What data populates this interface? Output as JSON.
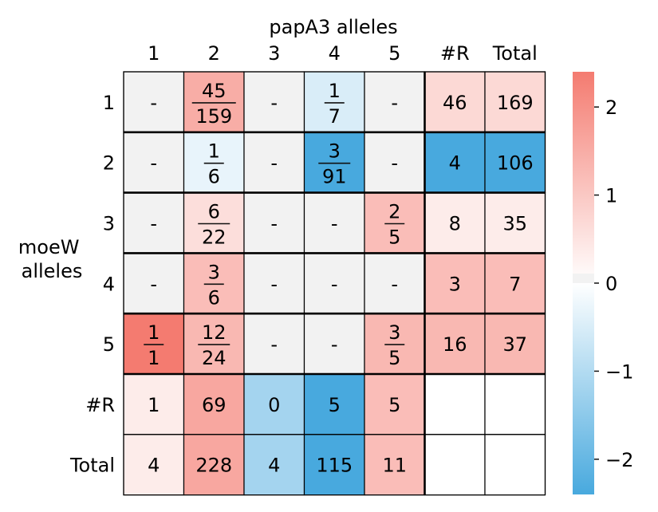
{
  "chart_data": {
    "type": "heatmap",
    "title": "papA3 alleles",
    "ylabel_lines": [
      "moeW",
      "alleles"
    ],
    "col_labels": [
      "1",
      "2",
      "3",
      "4",
      "5",
      "#R",
      "Total"
    ],
    "row_labels": [
      "1",
      "2",
      "3",
      "4",
      "5",
      "#R",
      "Total"
    ],
    "cells": [
      [
        {
          "v": 0,
          "t": "-"
        },
        {
          "v": 1.5,
          "num": "45",
          "den": "159"
        },
        {
          "v": 0,
          "t": "-"
        },
        {
          "v": -0.5,
          "num": "1",
          "den": "7"
        },
        {
          "v": 0,
          "t": "-"
        },
        {
          "v": 0.7,
          "t": "46"
        },
        {
          "v": 0.7,
          "t": "169"
        }
      ],
      [
        {
          "v": 0,
          "t": "-"
        },
        {
          "v": -0.3,
          "num": "1",
          "den": "6"
        },
        {
          "v": 0,
          "t": "-"
        },
        {
          "v": -2.4,
          "num": "3",
          "den": "91"
        },
        {
          "v": 0,
          "t": "-"
        },
        {
          "v": -2.4,
          "t": "4"
        },
        {
          "v": -2.4,
          "t": "106"
        }
      ],
      [
        {
          "v": 0,
          "t": "-"
        },
        {
          "v": 0.6,
          "num": "6",
          "den": "22"
        },
        {
          "v": 0,
          "t": "-"
        },
        {
          "v": 0,
          "t": "-"
        },
        {
          "v": 1.2,
          "num": "2",
          "den": "5"
        },
        {
          "v": 0.35,
          "t": "8"
        },
        {
          "v": 0.35,
          "t": "35"
        }
      ],
      [
        {
          "v": 0,
          "t": "-"
        },
        {
          "v": 1.2,
          "num": "3",
          "den": "6"
        },
        {
          "v": 0,
          "t": "-"
        },
        {
          "v": 0,
          "t": "-"
        },
        {
          "v": 0,
          "t": "-"
        },
        {
          "v": 1.2,
          "t": "3"
        },
        {
          "v": 1.2,
          "t": "7"
        }
      ],
      [
        {
          "v": 2.4,
          "num": "1",
          "den": "1"
        },
        {
          "v": 1.3,
          "num": "12",
          "den": "24"
        },
        {
          "v": 0,
          "t": "-"
        },
        {
          "v": 0,
          "t": "-"
        },
        {
          "v": 1.3,
          "num": "3",
          "den": "5"
        },
        {
          "v": 1.3,
          "t": "16"
        },
        {
          "v": 1.3,
          "t": "37"
        }
      ],
      [
        {
          "v": 0.35,
          "t": "1"
        },
        {
          "v": 1.6,
          "t": "69"
        },
        {
          "v": -1.2,
          "t": "0"
        },
        {
          "v": -2.4,
          "t": "5"
        },
        {
          "v": 1.2,
          "t": "5"
        },
        {
          "v": null,
          "t": ""
        },
        {
          "v": null,
          "t": ""
        }
      ],
      [
        {
          "v": 0.35,
          "t": "4"
        },
        {
          "v": 1.6,
          "t": "228"
        },
        {
          "v": -1.2,
          "t": "4"
        },
        {
          "v": -2.4,
          "t": "115"
        },
        {
          "v": 1.2,
          "t": "11"
        },
        {
          "v": null,
          "t": ""
        },
        {
          "v": null,
          "t": ""
        }
      ]
    ],
    "colorbar": {
      "range": [
        -2.4,
        2.4
      ],
      "ticks": [
        2,
        1,
        0,
        -1,
        -2
      ],
      "tick_labels": [
        "2",
        "1",
        "0",
        "−1",
        "−2"
      ]
    },
    "colors": {
      "positive": "#f47b70",
      "negative": "#48a9de",
      "neutral": "#f2f2f2",
      "empty": "#ffffff",
      "border": "#000000"
    }
  }
}
